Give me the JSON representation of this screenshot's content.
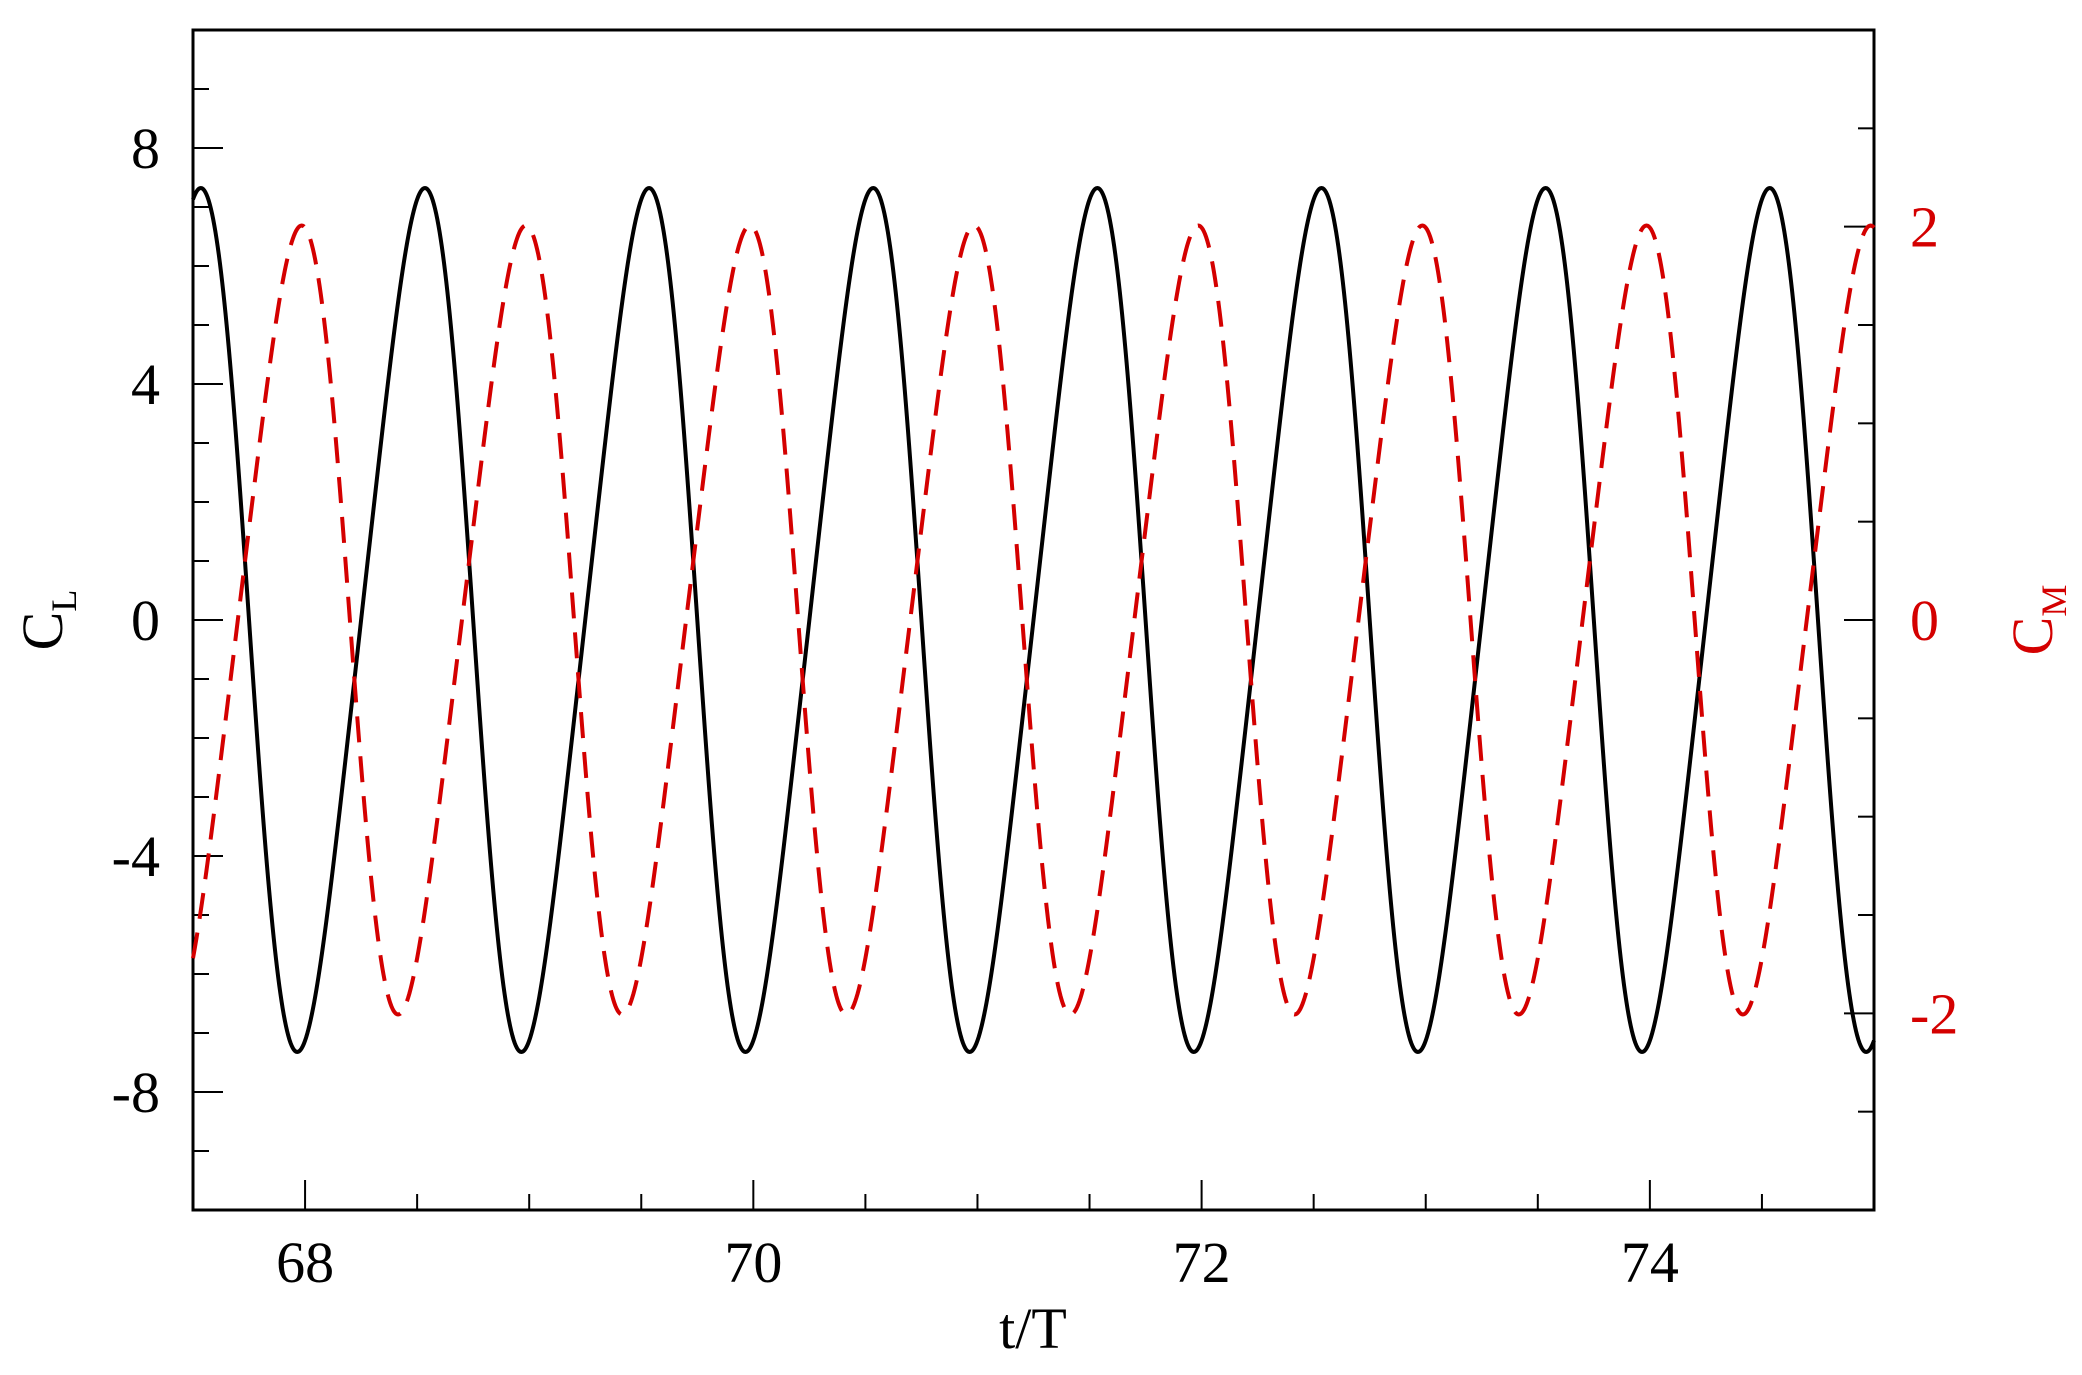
{
  "chart_data": {
    "type": "line",
    "title": "",
    "xlabel": "t/T",
    "ylabel_left": {
      "base": "C",
      "sub": "L"
    },
    "ylabel_right": {
      "base": "C",
      "sub": "M"
    },
    "xlim": [
      67.5,
      75.0
    ],
    "ylim_left": [
      -10,
      10
    ],
    "ylim_right": [
      -3,
      3
    ],
    "x_ticks": [
      68,
      70,
      72,
      74
    ],
    "x_tick_labels": [
      "68",
      "70",
      "72",
      "74"
    ],
    "y_left_ticks": [
      -8,
      -4,
      0,
      4,
      8
    ],
    "y_left_tick_labels": [
      "-8",
      "-4",
      "0",
      "4",
      "8"
    ],
    "y_right_ticks": [
      -2,
      0,
      2
    ],
    "y_right_tick_labels": [
      "-2",
      "0",
      "2"
    ],
    "grid": false,
    "legend": "none",
    "series": [
      {
        "axis": "left",
        "style": "solid",
        "color": "#000000",
        "model": {
          "amplitude": 7.3,
          "period": 1.0,
          "peak_t": 67.5,
          "harmonic2": 0.12
        },
        "peaks": [
          {
            "t": 67.5,
            "value": 7.3
          },
          {
            "t": 68.5,
            "value": 7.3
          },
          {
            "t": 69.5,
            "value": 7.3
          },
          {
            "t": 70.5,
            "value": 7.3
          },
          {
            "t": 71.5,
            "value": 7.3
          },
          {
            "t": 72.5,
            "value": 7.3
          },
          {
            "t": 73.5,
            "value": 7.3
          },
          {
            "t": 74.5,
            "value": 7.3
          }
        ],
        "troughs": [
          {
            "t": 68.0,
            "value": -7.3
          },
          {
            "t": 69.0,
            "value": -7.3
          },
          {
            "t": 70.0,
            "value": -7.3
          },
          {
            "t": 71.0,
            "value": -7.3
          },
          {
            "t": 72.0,
            "value": -7.3
          },
          {
            "t": 73.0,
            "value": -7.3
          },
          {
            "t": 74.0,
            "value": -7.3
          },
          {
            "t": 75.0,
            "value": -7.3
          }
        ]
      },
      {
        "axis": "right",
        "style": "dashed",
        "color": "#d40000",
        "model": {
          "amplitude": 2.0,
          "period": 1.0,
          "peak_t": 67.95,
          "harmonic2": 0.12
        },
        "peaks": [
          {
            "t": 67.95,
            "value": 2.0
          },
          {
            "t": 68.95,
            "value": 2.0
          },
          {
            "t": 69.95,
            "value": 2.0
          },
          {
            "t": 70.95,
            "value": 2.0
          },
          {
            "t": 71.95,
            "value": 2.0
          },
          {
            "t": 72.95,
            "value": 2.0
          },
          {
            "t": 73.95,
            "value": 2.0
          },
          {
            "t": 74.95,
            "value": 2.0
          }
        ],
        "troughs": [
          {
            "t": 68.45,
            "value": -2.0
          },
          {
            "t": 69.45,
            "value": -2.0
          },
          {
            "t": 70.45,
            "value": -2.0
          },
          {
            "t": 71.45,
            "value": -2.0
          },
          {
            "t": 72.45,
            "value": -2.0
          },
          {
            "t": 73.45,
            "value": -2.0
          },
          {
            "t": 74.45,
            "value": -2.0
          }
        ]
      }
    ]
  }
}
